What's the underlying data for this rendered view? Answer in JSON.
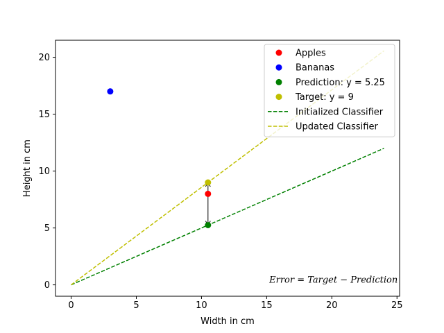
{
  "chart_data": {
    "type": "scatter",
    "xlabel": "Width in cm",
    "ylabel": "Height in cm",
    "xlim": [
      -1.2,
      25.2
    ],
    "ylim": [
      -1.0,
      21.5
    ],
    "xticks": [
      0,
      5,
      10,
      15,
      20,
      25
    ],
    "yticks": [
      0,
      5,
      10,
      15,
      20
    ],
    "grid": false,
    "legend_position": "upper right",
    "series": [
      {
        "name": "Apples",
        "kind": "point",
        "color": "#ff0000",
        "points": [
          [
            10.5,
            8
          ]
        ]
      },
      {
        "name": "Bananas",
        "kind": "point",
        "color": "#0000ff",
        "points": [
          [
            3,
            17
          ]
        ]
      },
      {
        "name": "Prediction: y = 5.25",
        "kind": "point",
        "color": "#008000",
        "points": [
          [
            10.5,
            5.25
          ]
        ]
      },
      {
        "name": "Target: y = 9",
        "kind": "point",
        "color": "#bfbf00",
        "points": [
          [
            10.5,
            9
          ]
        ]
      },
      {
        "name": "Initialized Classifier",
        "kind": "line",
        "style": "dashed",
        "color": "#008000",
        "points": [
          [
            0,
            0
          ],
          [
            24,
            12
          ]
        ]
      },
      {
        "name": "Updated Classifier",
        "kind": "line",
        "style": "dashed",
        "color": "#bfbf00",
        "points": [
          [
            0,
            0
          ],
          [
            24,
            20.57
          ]
        ]
      }
    ],
    "arrow": {
      "x": 10.5,
      "from_y": 5.25,
      "to_y": 9,
      "double_headed": true
    },
    "annotation": {
      "text": "Error = Target − Prediction",
      "x": 15.2,
      "y": 0.2
    }
  }
}
